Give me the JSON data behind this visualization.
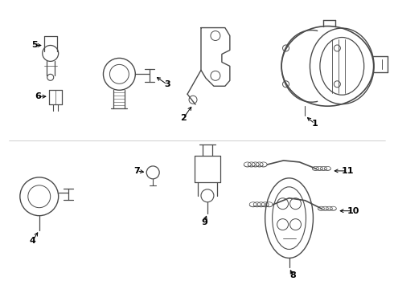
{
  "background_color": "#ffffff",
  "line_color": "#4a4a4a",
  "label_color": "#000000",
  "fig_width": 4.9,
  "fig_height": 3.6,
  "dpi": 100
}
